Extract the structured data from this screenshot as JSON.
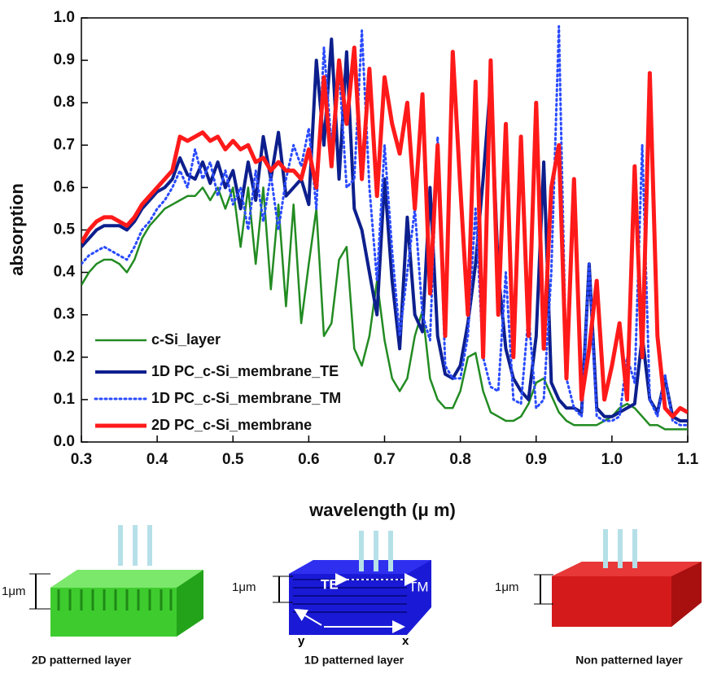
{
  "chart_data": {
    "type": "line",
    "xlabel": "wavelength (μ m)",
    "ylabel": "absorption",
    "xlim": [
      0.3,
      1.1
    ],
    "ylim": [
      0,
      1
    ],
    "xticks": [
      0.3,
      0.4,
      0.5,
      0.6,
      0.7,
      0.8,
      0.9,
      {
        "value": 1,
        "label": "1.0"
      },
      1.1
    ],
    "yticks": [
      {
        "value": 0,
        "label": "0.0"
      },
      0.1,
      0.2,
      0.3,
      0.4,
      0.5,
      0.6,
      0.7,
      0.8,
      0.9,
      {
        "value": 1,
        "label": "1.0"
      }
    ],
    "legend": "lower left",
    "x": [
      0.3,
      0.31,
      0.32,
      0.33,
      0.34,
      0.35,
      0.36,
      0.37,
      0.38,
      0.39,
      0.4,
      0.41,
      0.42,
      0.43,
      0.44,
      0.45,
      0.46,
      0.47,
      0.48,
      0.49,
      0.5,
      0.51,
      0.52,
      0.53,
      0.54,
      0.55,
      0.56,
      0.57,
      0.58,
      0.59,
      0.6,
      0.61,
      0.62,
      0.63,
      0.64,
      0.65,
      0.66,
      0.67,
      0.68,
      0.69,
      0.7,
      0.71,
      0.72,
      0.73,
      0.74,
      0.75,
      0.76,
      0.77,
      0.78,
      0.79,
      0.8,
      0.81,
      0.82,
      0.83,
      0.84,
      0.85,
      0.86,
      0.87,
      0.88,
      0.89,
      0.9,
      0.91,
      0.92,
      0.93,
      0.94,
      0.95,
      0.96,
      0.97,
      0.98,
      0.99,
      1.0,
      1.01,
      1.02,
      1.03,
      1.04,
      1.05,
      1.06,
      1.07,
      1.08,
      1.09,
      1.1
    ],
    "series": [
      {
        "name": "c-Si_layer",
        "color": "#228b22",
        "style": "solid",
        "width": 2.5,
        "values": [
          0.37,
          0.4,
          0.42,
          0.43,
          0.43,
          0.42,
          0.4,
          0.43,
          0.48,
          0.51,
          0.53,
          0.55,
          0.56,
          0.57,
          0.58,
          0.58,
          0.6,
          0.57,
          0.6,
          0.55,
          0.6,
          0.46,
          0.6,
          0.42,
          0.6,
          0.36,
          0.56,
          0.32,
          0.56,
          0.28,
          0.42,
          0.55,
          0.25,
          0.28,
          0.43,
          0.46,
          0.22,
          0.18,
          0.25,
          0.38,
          0.24,
          0.15,
          0.12,
          0.15,
          0.25,
          0.31,
          0.15,
          0.1,
          0.08,
          0.08,
          0.12,
          0.2,
          0.21,
          0.12,
          0.07,
          0.06,
          0.05,
          0.05,
          0.06,
          0.09,
          0.14,
          0.15,
          0.11,
          0.07,
          0.05,
          0.04,
          0.04,
          0.04,
          0.04,
          0.05,
          0.06,
          0.08,
          0.09,
          0.08,
          0.06,
          0.04,
          0.04,
          0.03,
          0.03,
          0.03,
          0.03
        ]
      },
      {
        "name": "1D PC_c-Si_membrane_TE",
        "color": "#0d1f8c",
        "style": "solid",
        "width": 4,
        "values": [
          0.46,
          0.48,
          0.5,
          0.51,
          0.51,
          0.51,
          0.5,
          0.52,
          0.55,
          0.57,
          0.59,
          0.6,
          0.62,
          0.67,
          0.63,
          0.62,
          0.66,
          0.61,
          0.66,
          0.6,
          0.64,
          0.55,
          0.66,
          0.57,
          0.72,
          0.62,
          0.73,
          0.58,
          0.6,
          0.62,
          0.56,
          0.9,
          0.7,
          0.95,
          0.62,
          0.92,
          0.55,
          0.5,
          0.4,
          0.3,
          0.62,
          0.38,
          0.22,
          0.53,
          0.3,
          0.26,
          0.6,
          0.25,
          0.16,
          0.15,
          0.18,
          0.28,
          0.42,
          0.62,
          0.85,
          0.4,
          0.22,
          0.15,
          0.12,
          0.1,
          0.25,
          0.66,
          0.14,
          0.1,
          0.08,
          0.08,
          0.07,
          0.42,
          0.08,
          0.06,
          0.06,
          0.07,
          0.08,
          0.09,
          0.25,
          0.1,
          0.07,
          0.15,
          0.06,
          0.05,
          0.05
        ]
      },
      {
        "name": "1D PC_c-Si_membrane_TM",
        "color": "#2a4bff",
        "style": "dotted",
        "width": 3,
        "values": [
          0.42,
          0.44,
          0.45,
          0.46,
          0.45,
          0.44,
          0.43,
          0.46,
          0.5,
          0.52,
          0.55,
          0.57,
          0.6,
          0.64,
          0.6,
          0.69,
          0.62,
          0.66,
          0.58,
          0.64,
          0.56,
          0.6,
          0.5,
          0.64,
          0.52,
          0.63,
          0.5,
          0.62,
          0.7,
          0.65,
          0.74,
          0.55,
          0.93,
          0.7,
          0.88,
          0.6,
          0.62,
          0.97,
          0.6,
          0.38,
          0.7,
          0.45,
          0.25,
          0.4,
          0.55,
          0.3,
          0.24,
          0.72,
          0.18,
          0.15,
          0.15,
          0.25,
          0.55,
          0.2,
          0.13,
          0.12,
          0.4,
          0.1,
          0.09,
          0.3,
          0.08,
          0.1,
          0.4,
          0.98,
          0.15,
          0.08,
          0.06,
          0.42,
          0.06,
          0.05,
          0.05,
          0.06,
          0.2,
          0.14,
          0.7,
          0.1,
          0.06,
          0.16,
          0.05,
          0.04,
          0.04
        ]
      },
      {
        "name": "2D PC_c-Si_membrane",
        "color": "#ff1a1a",
        "style": "solid",
        "width": 5,
        "values": [
          0.47,
          0.5,
          0.52,
          0.53,
          0.53,
          0.52,
          0.51,
          0.53,
          0.56,
          0.58,
          0.6,
          0.62,
          0.64,
          0.72,
          0.71,
          0.72,
          0.73,
          0.71,
          0.72,
          0.69,
          0.71,
          0.69,
          0.7,
          0.66,
          0.67,
          0.64,
          0.66,
          0.64,
          0.64,
          0.62,
          0.69,
          0.6,
          0.86,
          0.65,
          0.9,
          0.75,
          0.93,
          0.62,
          0.88,
          0.58,
          0.86,
          0.75,
          0.68,
          0.8,
          0.55,
          0.82,
          0.35,
          0.7,
          0.25,
          0.92,
          0.6,
          0.3,
          0.85,
          0.2,
          0.9,
          0.3,
          0.75,
          0.2,
          0.72,
          0.25,
          0.8,
          0.22,
          0.6,
          0.7,
          0.15,
          0.62,
          0.1,
          0.22,
          0.38,
          0.1,
          0.18,
          0.28,
          0.1,
          0.65,
          0.2,
          0.87,
          0.25,
          0.08,
          0.06,
          0.08,
          0.07
        ]
      }
    ]
  },
  "diagrams": [
    {
      "thickness": "1μm",
      "caption": "2D patterned layer"
    },
    {
      "thickness": "1μm",
      "caption": "1D patterned layer",
      "polarizations": [
        "TE",
        "TM"
      ],
      "axes": [
        "y",
        "x"
      ]
    },
    {
      "thickness": "1μm",
      "caption": "Non patterned layer"
    }
  ]
}
